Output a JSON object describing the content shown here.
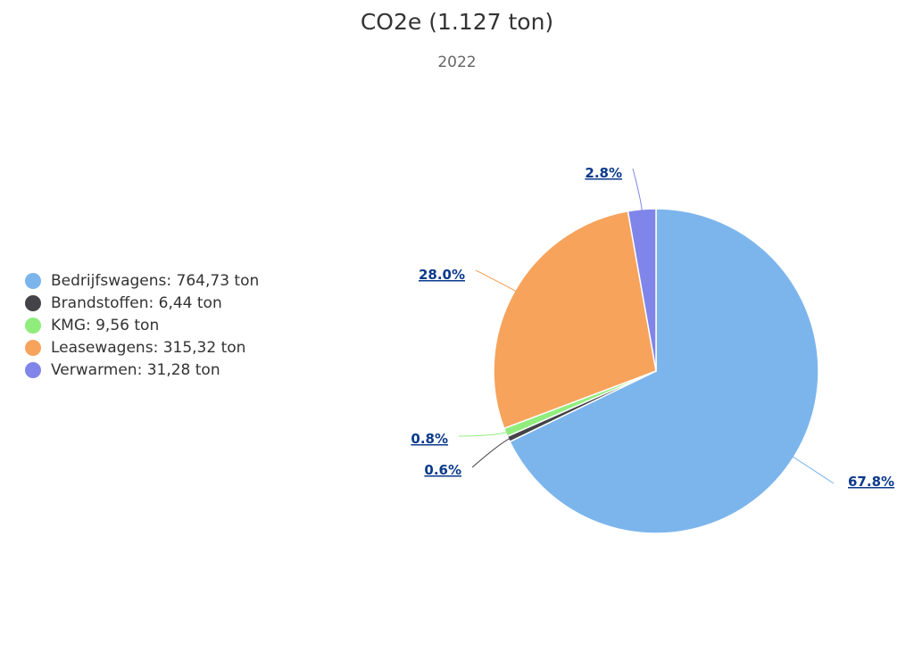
{
  "chart_data": {
    "type": "pie",
    "title": "CO2e (1.127 ton)",
    "subtitle": "2022",
    "legend_position": "left",
    "slices": [
      {
        "name": "Bedrijfswagens",
        "legend_label": "Bedrijfswagens: 764,73 ton",
        "value": 764.73,
        "percent_label": "67.8%",
        "color": "#7cb5ec"
      },
      {
        "name": "Brandstoffen",
        "legend_label": "Brandstoffen: 6,44 ton",
        "value": 6.44,
        "percent_label": "0.6%",
        "color": "#434348"
      },
      {
        "name": "KMG",
        "legend_label": "KMG: 9,56 ton",
        "value": 9.56,
        "percent_label": "0.8%",
        "color": "#90ed7d"
      },
      {
        "name": "Leasewagens",
        "legend_label": "Leasewagens: 315,32 ton",
        "value": 315.32,
        "percent_label": "28.0%",
        "color": "#f7a35c"
      },
      {
        "name": "Verwarmen",
        "legend_label": "Verwarmen: 31,28 ton",
        "value": 31.28,
        "percent_label": "2.8%",
        "color": "#8085e9"
      }
    ]
  }
}
